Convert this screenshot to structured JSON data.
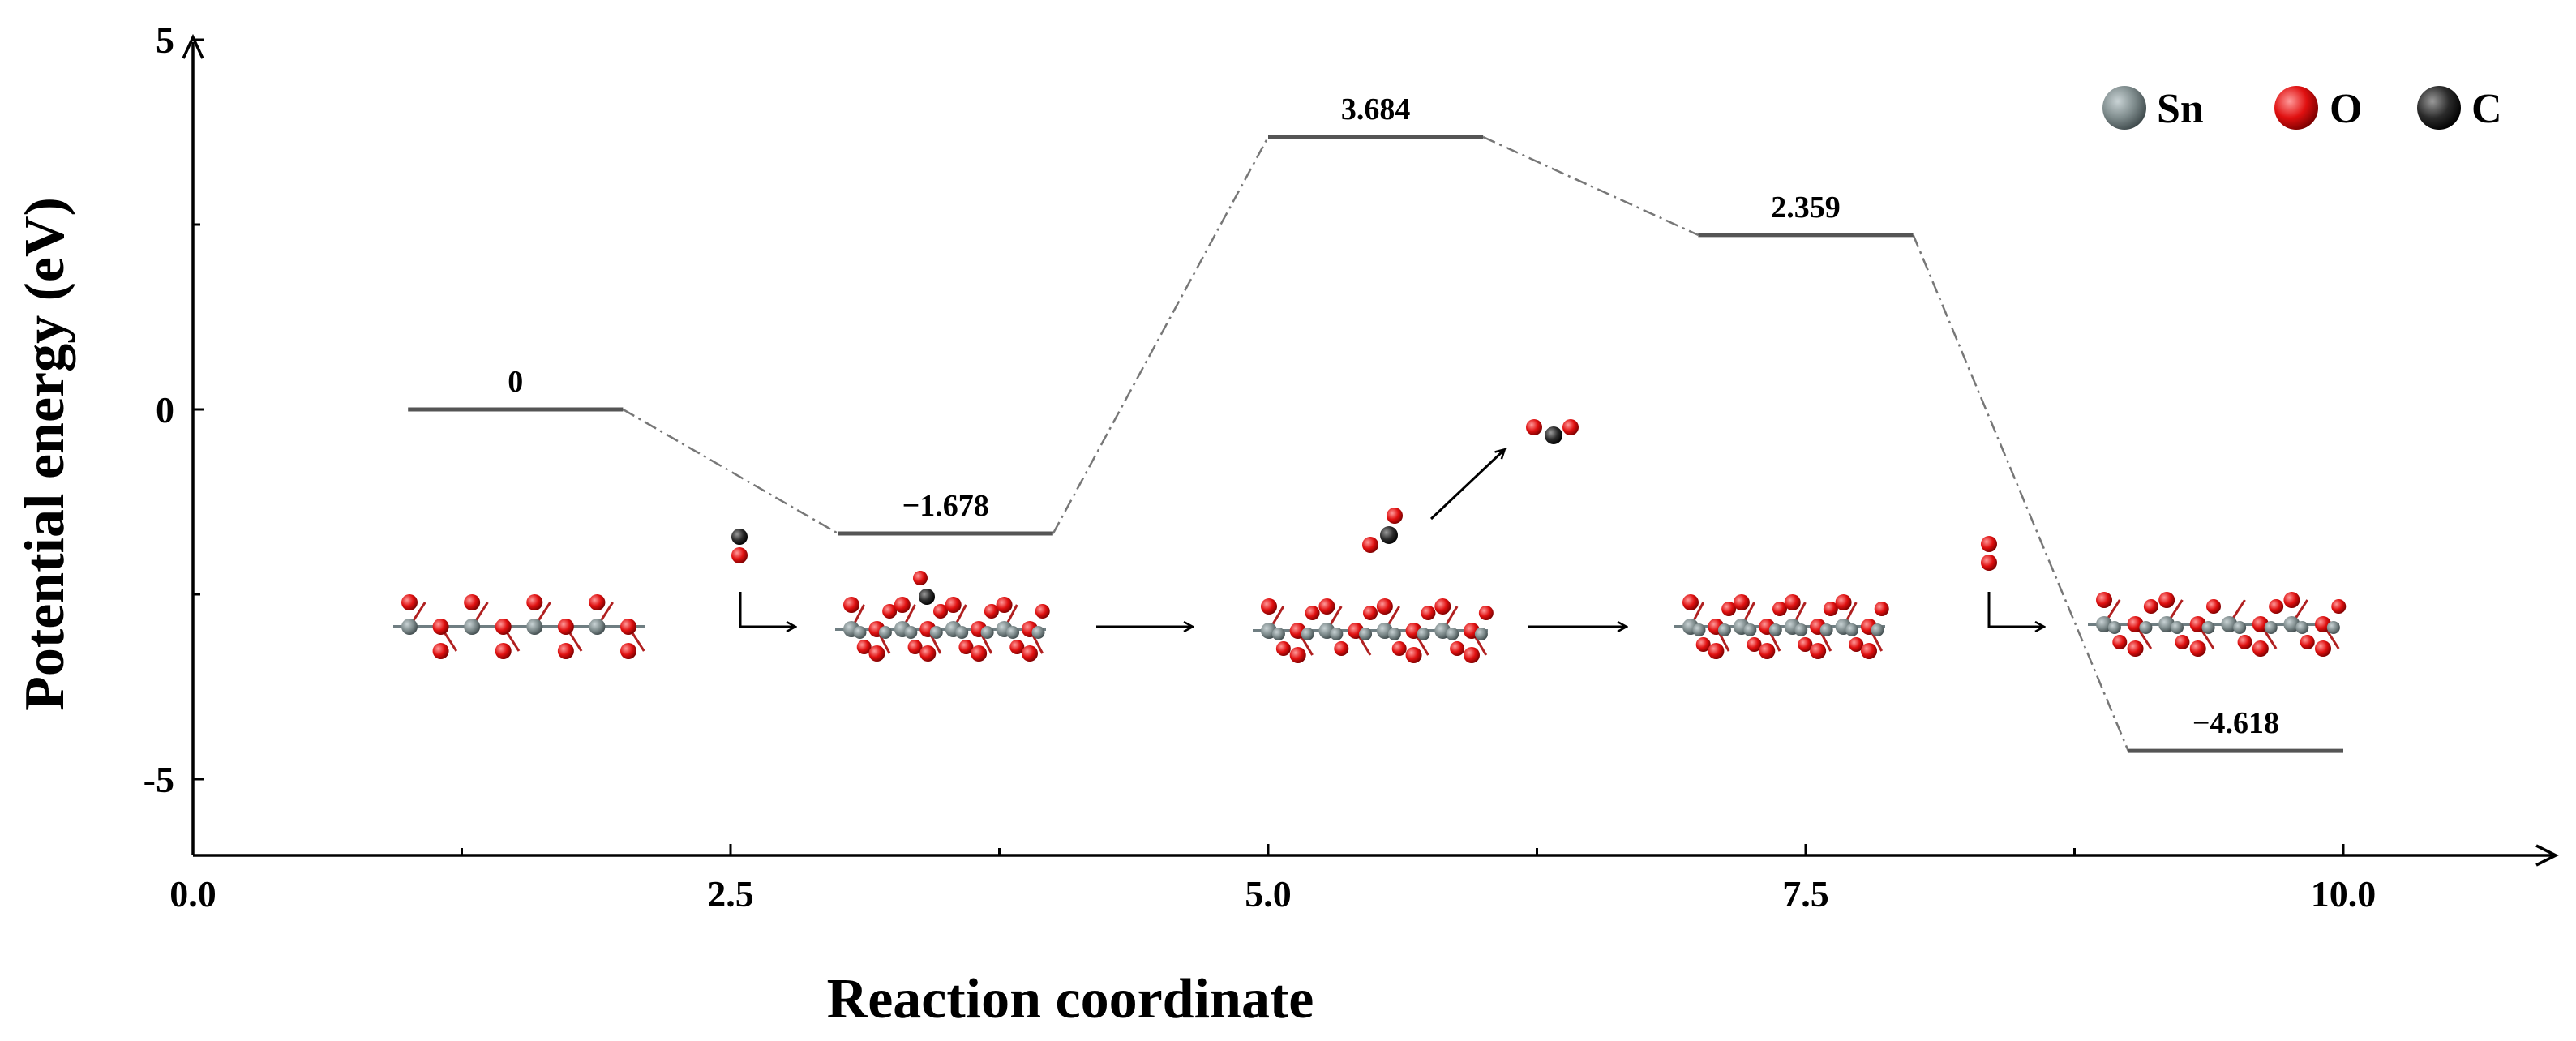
{
  "chart_data": {
    "type": "line",
    "title": "",
    "xlabel": "Reaction coordinate",
    "ylabel": "Potential energy (eV)",
    "xlim": [
      0,
      11.2
    ],
    "ylim": [
      -6,
      5
    ],
    "x_ticks": [
      0.0,
      2.5,
      5.0,
      7.5,
      10.0
    ],
    "x_tick_labels": [
      "0.0",
      "2.5",
      "5.0",
      "7.5",
      "10.0"
    ],
    "y_ticks": [
      -5,
      0,
      5
    ],
    "y_tick_labels": [
      "-5",
      "0",
      "5"
    ],
    "grid": false,
    "levels": [
      {
        "x_start": 1,
        "x_end": 2,
        "energy": 0,
        "label": "0"
      },
      {
        "x_start": 3,
        "x_end": 4,
        "energy": -1.678,
        "label": "−1.678"
      },
      {
        "x_start": 5,
        "x_end": 6,
        "energy": 3.684,
        "label": "3.684"
      },
      {
        "x_start": 7,
        "x_end": 8,
        "energy": 2.359,
        "label": "2.359"
      },
      {
        "x_start": 9,
        "x_end": 10,
        "energy": -4.618,
        "label": "−4.618"
      }
    ],
    "legend": {
      "position": "top-right",
      "entries": [
        {
          "label": "Sn",
          "color": "#7f8c8d"
        },
        {
          "label": "O",
          "color": "#e01010"
        },
        {
          "label": "C",
          "color": "#2b2b2b"
        }
      ]
    }
  },
  "colors": {
    "sn": "#7f8c8d",
    "o": "#e01010",
    "c": "#2b2b2b",
    "level": "#555555"
  }
}
